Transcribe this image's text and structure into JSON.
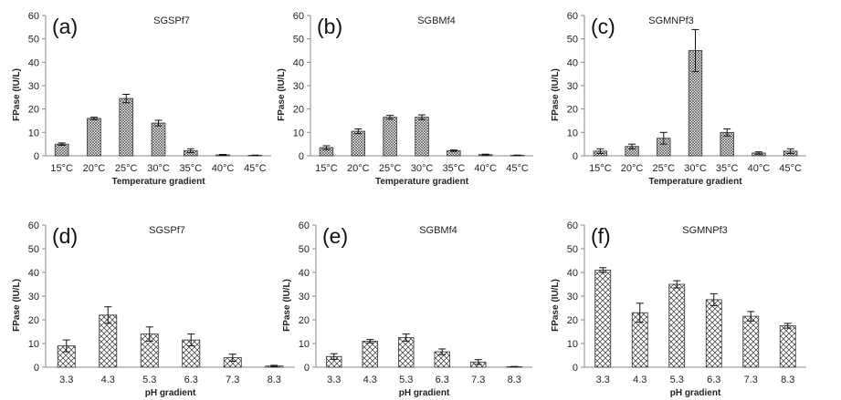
{
  "colors": {
    "bar_fill": "#ffffff",
    "hatch": "#222222",
    "axis": "#888888",
    "text": "#222222"
  },
  "chart_data": [
    {
      "type": "bar",
      "panel_label": "(a)",
      "title": "SGSPf7",
      "xlabel": "Temperature gradient",
      "ylabel": "FPase (IU/L)",
      "ylim": [
        0,
        60
      ],
      "yticks": [
        0,
        10,
        20,
        30,
        40,
        50,
        60
      ],
      "categories": [
        "15°C",
        "20°C",
        "25°C",
        "30°C",
        "35°C",
        "40°C",
        "45°C"
      ],
      "values": [
        5,
        16,
        24.5,
        14,
        2.2,
        0.4,
        0.2
      ],
      "errors": [
        0.5,
        0.5,
        1.8,
        1.2,
        0.8,
        0.2,
        0.1
      ],
      "hatch": "dots"
    },
    {
      "type": "bar",
      "panel_label": "(b)",
      "title": "SGBMf4",
      "xlabel": "Temperature gradient",
      "ylabel": "FPase (IU/L)",
      "ylim": [
        0,
        60
      ],
      "yticks": [
        0,
        10,
        20,
        30,
        40,
        50,
        60
      ],
      "categories": [
        "15°C",
        "20°C",
        "25°C",
        "30°C",
        "35°C",
        "40°C",
        "45°C"
      ],
      "values": [
        3.5,
        10.5,
        16.5,
        16.5,
        2.2,
        0.5,
        0.2
      ],
      "errors": [
        0.8,
        1.0,
        0.8,
        1.0,
        0.3,
        0.2,
        0.1
      ],
      "hatch": "dots"
    },
    {
      "type": "bar",
      "panel_label": "(c)",
      "title": "SGMNPf3",
      "xlabel": "Temperature gradient",
      "ylabel": "FPase (IU/L)",
      "ylim": [
        0,
        60
      ],
      "yticks": [
        0,
        10,
        20,
        30,
        40,
        50,
        60
      ],
      "categories": [
        "15°C",
        "20°C",
        "25°C",
        "30°C",
        "35°C",
        "40°C",
        "45°C"
      ],
      "values": [
        2,
        4,
        7.5,
        45,
        10,
        1.2,
        2
      ],
      "errors": [
        1.0,
        1.0,
        2.5,
        9.0,
        1.5,
        0.5,
        1.0
      ],
      "hatch": "dots"
    },
    {
      "type": "bar",
      "panel_label": "(d)",
      "title": "SGSPf7",
      "xlabel": "pH gradient",
      "ylabel": "FPase (IU/L)",
      "ylim": [
        0,
        60
      ],
      "yticks": [
        0,
        10,
        20,
        30,
        40,
        50,
        60
      ],
      "categories": [
        "3.3",
        "4.3",
        "5.3",
        "6.3",
        "7.3",
        "8.3"
      ],
      "values": [
        9,
        22,
        14,
        11.5,
        4,
        0.5
      ],
      "errors": [
        2.5,
        3.5,
        3.0,
        2.5,
        1.5,
        0.3
      ],
      "hatch": "cross"
    },
    {
      "type": "bar",
      "panel_label": "(e)",
      "title": "SGBMf4",
      "xlabel": "pH gradient",
      "ylabel": "FPase (IU/L)",
      "ylim": [
        0,
        60
      ],
      "yticks": [
        0,
        10,
        20,
        30,
        40,
        50,
        60
      ],
      "categories": [
        "3.3",
        "4.3",
        "5.3",
        "6.3",
        "7.3",
        "8.3"
      ],
      "values": [
        4.5,
        11,
        12.5,
        6.5,
        2.2,
        0.2
      ],
      "errors": [
        1.2,
        0.7,
        1.5,
        1.2,
        1.0,
        0.1
      ],
      "hatch": "cross"
    },
    {
      "type": "bar",
      "panel_label": "(f)",
      "title": "SGMNPf3",
      "xlabel": "pH gradient",
      "ylabel": "FPase (IU/L)",
      "ylim": [
        0,
        60
      ],
      "yticks": [
        0,
        10,
        20,
        30,
        40,
        50,
        60
      ],
      "categories": [
        "3.3",
        "4.3",
        "5.3",
        "6.3",
        "7.3",
        "8.3"
      ],
      "values": [
        41,
        23,
        35,
        28.5,
        21.5,
        17.5
      ],
      "errors": [
        1.0,
        4.0,
        1.5,
        2.5,
        2.0,
        1.0
      ],
      "hatch": "cross"
    }
  ]
}
